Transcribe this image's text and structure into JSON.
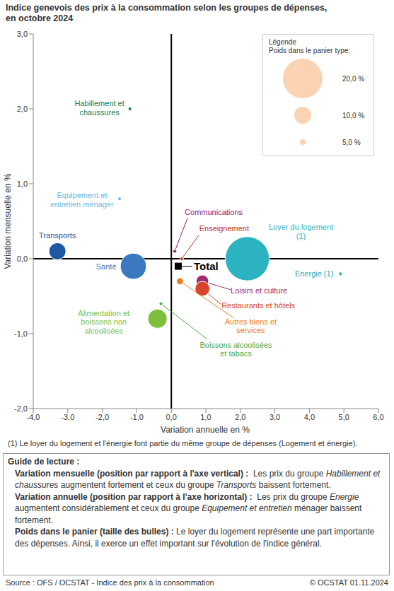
{
  "chart_data": {
    "type": "bubble",
    "title": "Indice genevois des prix à la consommation selon les groupes de dépenses,",
    "subtitle": "en octobre 2024",
    "x_label": "Variation annuelle en %",
    "y_label": "Variation mensuelle en %",
    "xlim": [
      -4,
      6
    ],
    "xticks": [
      {
        "value": -4,
        "label": "-4,0"
      },
      {
        "value": -3,
        "label": "-3,0"
      },
      {
        "value": -2,
        "label": "-2,0"
      },
      {
        "value": -1,
        "label": "-1,0"
      },
      {
        "value": 0,
        "label": "0,0"
      },
      {
        "value": 1,
        "label": "1,0"
      },
      {
        "value": 2,
        "label": "2,0"
      },
      {
        "value": 3,
        "label": "3,0"
      },
      {
        "value": 4,
        "label": "4,0"
      },
      {
        "value": 5,
        "label": "5,0"
      },
      {
        "value": 6,
        "label": "6,0"
      }
    ],
    "ylim": [
      -2,
      3
    ],
    "yticks": [
      {
        "value": -2,
        "label": "-2,0"
      },
      {
        "value": -1,
        "label": "-1,0"
      },
      {
        "value": 0,
        "label": "0,0"
      },
      {
        "value": 1,
        "label": "1,0"
      },
      {
        "value": 2,
        "label": "2,0"
      },
      {
        "value": 3,
        "label": "3,0"
      }
    ],
    "grid": false,
    "reference_lines": {
      "x": 0,
      "y": 0
    },
    "points": [
      {
        "name": "Habillement et chaussures",
        "color": "#1b7a4c",
        "x": -1.2,
        "y": 2.0,
        "size": 3
      },
      {
        "name": "Equipement et entretien ménager",
        "color": "#6db6e6",
        "x": -1.5,
        "y": 0.8,
        "size": 3.5
      },
      {
        "name": "Transports",
        "color": "#1f57a0",
        "x": -3.3,
        "y": 0.1,
        "size": 10
      },
      {
        "name": "Santé",
        "color": "#3a78c0",
        "x": -1.1,
        "y": -0.1,
        "size": 14
      },
      {
        "name": "Alimentation et boissons non alcoolisées",
        "color": "#7cbf3a",
        "x": -0.4,
        "y": -0.8,
        "size": 11
      },
      {
        "name": "Boissons alcoolisées et tabacs",
        "color": "#4aa84a",
        "x": -0.3,
        "y": -0.6,
        "size": 2
      },
      {
        "name": "Communications",
        "color": "#8b1a7c",
        "x": 0.1,
        "y": 0.1,
        "size": 3
      },
      {
        "name": "Enseignement",
        "color": "#c8321e",
        "x": 0.3,
        "y": 0.0,
        "size": 1
      },
      {
        "name": "Loyer du logement (1)",
        "color": "#2bb3c2",
        "x": 2.2,
        "y": 0.0,
        "size": 22
      },
      {
        "name": "Energie (1)",
        "color": "#2aa7b8",
        "x": 4.9,
        "y": -0.2,
        "size": 2
      },
      {
        "name": "Loisirs et culture",
        "color": "#9e2d6e",
        "x": 0.9,
        "y": -0.3,
        "size": 8
      },
      {
        "name": "Restaurants et hôtels",
        "color": "#d8432a",
        "x": 0.9,
        "y": -0.4,
        "size": 9
      },
      {
        "name": "Autres biens et services",
        "color": "#ee7d22",
        "x": 0.25,
        "y": -0.3,
        "size": 5.5
      }
    ],
    "total": {
      "name": "Total",
      "x": 0.2,
      "y": -0.1,
      "color": "#000000",
      "marker": "square"
    },
    "legend": "top right",
    "size_legend": {
      "title": "Légende",
      "subtitle": "Poids dans le panier type:",
      "values": [
        20,
        10,
        5
      ],
      "value_labels": [
        "20,0 %",
        "10,0 %",
        "5,0 %"
      ],
      "color": "#fbd3b2"
    },
    "footnote": "(1) Le loyer du logement et l'énergie font partie du même groupe de dépenses (Logement et énergie)."
  },
  "guide": {
    "title": "Guide de lecture :",
    "items": [
      {
        "heading": "Variation mensuelle (position par rapport à l'axe vertical) :",
        "parts": [
          "  Les prix du groupe ",
          "Habillement et chaussures",
          " augmentent fortement et ceux du groupe ",
          "Transports",
          " baissent fortement."
        ]
      },
      {
        "heading": "Variation annuelle (position par rapport à l'axe horizontal) :",
        "parts": [
          "  Les prix du groupe ",
          "Energie",
          " augmentent considérablement et ceux du groupe ",
          "Equipement et entretien",
          " ménager baissent fortement."
        ]
      },
      {
        "heading": "Poids dans le panier (taille des bulles) :",
        "parts": [
          " Le loyer du logement représente une part importante des dépenses. Ainsi, il exerce un effet important sur l'évolution de l'indice général."
        ]
      }
    ]
  },
  "source": {
    "left": "Source : OFS / OCSTAT - Indice des prix à la consommation",
    "right": "© OCSTAT 01.11.2024"
  }
}
